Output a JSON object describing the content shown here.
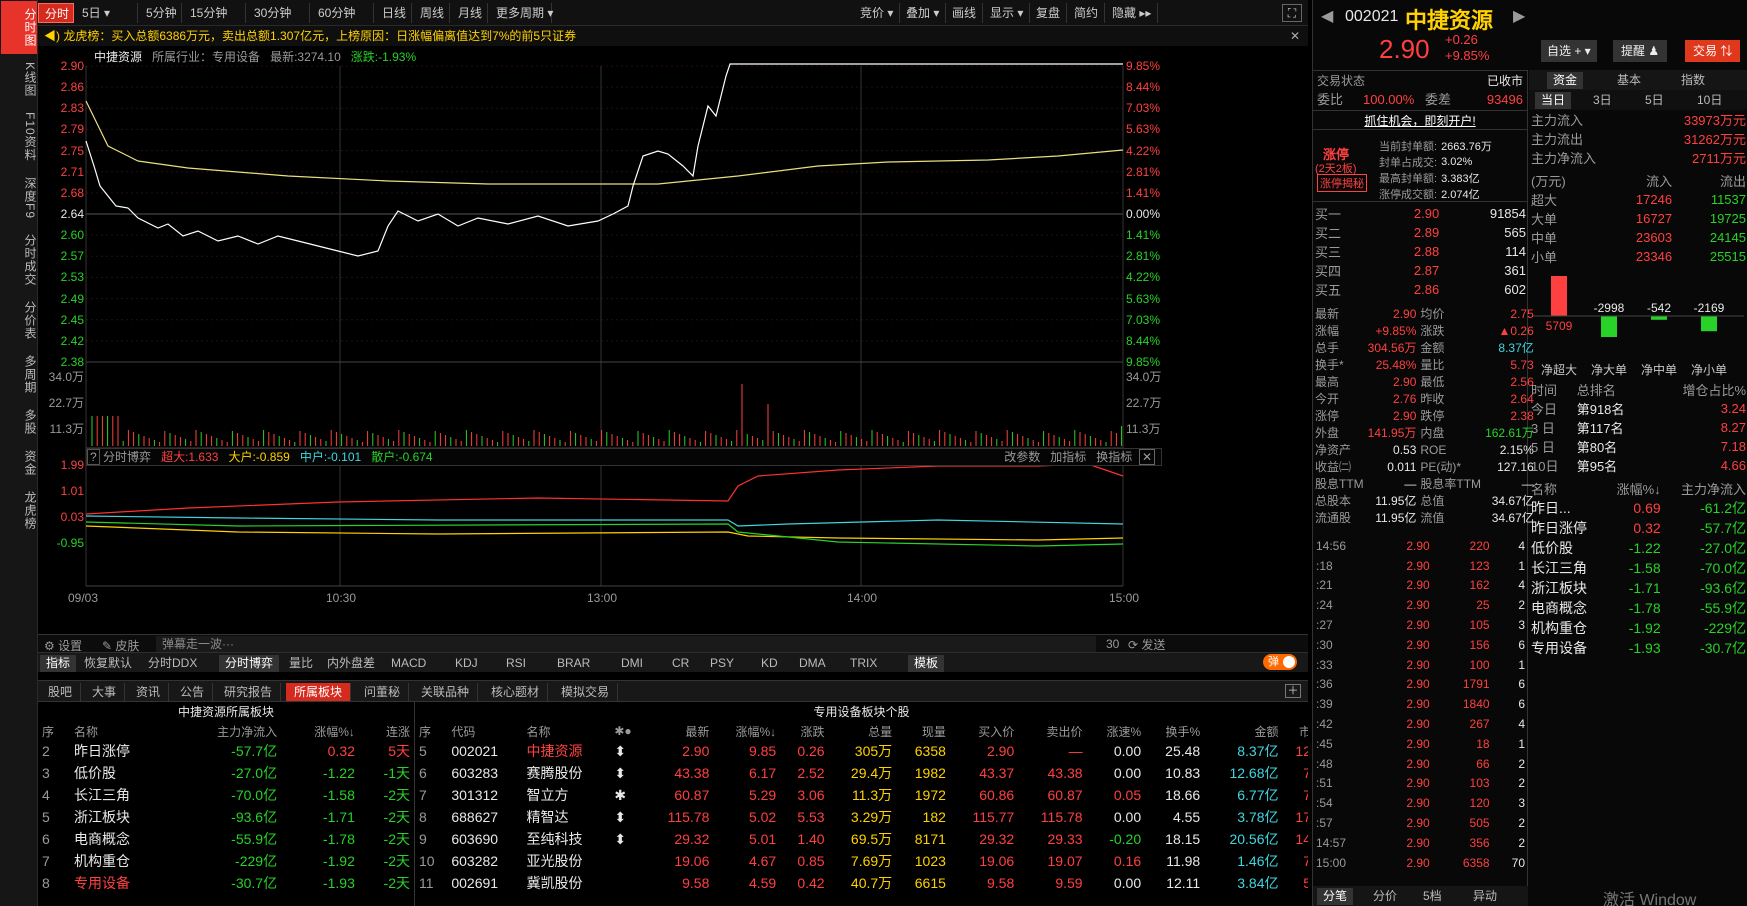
{
  "sidebar": [
    "分时图",
    "K线图",
    "F10资料",
    "深度F9",
    "分时成交",
    "分价表",
    "多周期",
    "多股",
    "资金",
    "龙虎榜"
  ],
  "toolbar": {
    "periods": [
      "分时",
      "5日 ▾",
      "5分钟",
      "15分钟",
      "30分钟",
      "60分钟",
      "日线",
      "周线",
      "月线",
      "更多周期 ▾"
    ],
    "right": [
      "竞价 ▾",
      "叠加 ▾",
      "画线",
      "显示 ▾",
      "复盘",
      "简约",
      "隐藏 ▸▸"
    ]
  },
  "notice": "龙虎榜：买入总额6386万元，卖出总额1.307亿元，上榜原因：日涨幅偏离值达到7%的前5只证券",
  "chart_info": {
    "name": "中捷资源",
    "industry": "所属行业：专用设备",
    "latest": "最新:3274.10",
    "change": "涨跌:-1.93%"
  },
  "price_ticks_left": [
    "2.90",
    "2.86",
    "2.83",
    "2.79",
    "2.75",
    "2.71",
    "2.68",
    "2.64",
    "2.60",
    "2.57",
    "2.53",
    "2.49",
    "2.45",
    "2.42",
    "2.38"
  ],
  "price_ticks_right": [
    "9.85%",
    "8.44%",
    "7.03%",
    "5.63%",
    "4.22%",
    "2.81%",
    "1.41%",
    "0.00%",
    "1.41%",
    "2.81%",
    "4.22%",
    "5.63%",
    "7.03%",
    "8.44%",
    "9.85%"
  ],
  "vol_ticks": [
    "34.0万",
    "22.7万",
    "11.3万"
  ],
  "ind_bar": {
    "name": "分时博弈",
    "super": "超大:1.633",
    "big": "大户:-0.859",
    "mid": "中户:-0.101",
    "small": "散户:-0.674",
    "links": [
      "改参数",
      "加指标",
      "换指标"
    ]
  },
  "ind_ticks": [
    "1.99",
    "1.01",
    "0.03",
    "-0.95"
  ],
  "time_ticks": [
    "09/03",
    "10:30",
    "13:00",
    "14:00",
    "15:00"
  ],
  "ctrl": {
    "settings": "设置",
    "skin": "皮肤",
    "danmu": "弹幕走一波···",
    "count": "30",
    "send": "发送",
    "toggle": "弹"
  },
  "tabs1": [
    "指标",
    "恢复默认",
    "分时DDX",
    "分时博弈",
    "量比",
    "内外盘差",
    "MACD",
    "KDJ",
    "RSI",
    "BRAR",
    "DMI",
    "CR",
    "PSY",
    "KD",
    "DMA",
    "TRIX",
    "模板"
  ],
  "tabs2": [
    "股吧",
    "大事",
    "资讯",
    "公告",
    "研究报告",
    "所属板块",
    "问董秘",
    "关联品种",
    "核心题材",
    "模拟交易"
  ],
  "sector": {
    "title": "中捷资源所属板块",
    "headers": [
      "序",
      "名称",
      "主力净流入",
      "涨幅%↓",
      "连涨"
    ],
    "rows": [
      [
        "2",
        "昨日涨停",
        "-57.7亿",
        "0.32",
        "5天"
      ],
      [
        "3",
        "低价股",
        "-27.0亿",
        "-1.22",
        "-1天"
      ],
      [
        "4",
        "长江三角",
        "-70.0亿",
        "-1.58",
        "-2天"
      ],
      [
        "5",
        "浙江板块",
        "-93.6亿",
        "-1.71",
        "-2天"
      ],
      [
        "6",
        "电商概念",
        "-55.9亿",
        "-1.78",
        "-2天"
      ],
      [
        "7",
        "机构重仓",
        "-229亿",
        "-1.92",
        "-2天"
      ],
      [
        "8",
        "专用设备",
        "-30.7亿",
        "-1.93",
        "-2天"
      ]
    ]
  },
  "stocks": {
    "title": "专用设备板块个股",
    "headers": [
      "序",
      "代码",
      "名称",
      "✱●",
      "最新",
      "涨幅%↓",
      "涨跌",
      "总量",
      "现量",
      "买入价",
      "卖出价",
      "涨速%",
      "换手%",
      "金额",
      "市"
    ],
    "rows": [
      [
        "5",
        "002021",
        "中捷资源",
        "⬍",
        "2.90",
        "9.85",
        "0.26",
        "305万",
        "6358",
        "2.90",
        "—",
        "0.00",
        "25.48",
        "8.37亿",
        "12"
      ],
      [
        "6",
        "603283",
        "赛腾股份",
        "⬍",
        "43.38",
        "6.17",
        "2.52",
        "29.4万",
        "1982",
        "43.37",
        "43.38",
        "0.00",
        "10.83",
        "12.68亿",
        "7"
      ],
      [
        "7",
        "301312",
        "智立方",
        "✱",
        "60.87",
        "5.29",
        "3.06",
        "11.3万",
        "1972",
        "60.86",
        "60.87",
        "0.05",
        "18.66",
        "6.77亿",
        "7"
      ],
      [
        "8",
        "688627",
        "精智达",
        "⬍",
        "115.78",
        "5.02",
        "5.53",
        "3.29万",
        "182",
        "115.77",
        "115.78",
        "0.00",
        "4.55",
        "3.78亿",
        "17"
      ],
      [
        "9",
        "603690",
        "至纯科技",
        "⬍",
        "29.32",
        "5.01",
        "1.40",
        "69.5万",
        "8171",
        "29.32",
        "29.33",
        "-0.20",
        "18.15",
        "20.56亿",
        "14"
      ],
      [
        "10",
        "603282",
        "亚光股份",
        "",
        "19.06",
        "4.67",
        "0.85",
        "7.69万",
        "1023",
        "19.06",
        "19.07",
        "0.16",
        "11.98",
        "1.46亿",
        "7"
      ],
      [
        "11",
        "002691",
        "冀凯股份",
        "",
        "9.58",
        "4.59",
        "0.42",
        "40.7万",
        "6615",
        "9.58",
        "9.59",
        "0.00",
        "12.11",
        "3.84亿",
        "5"
      ]
    ]
  },
  "quote": {
    "code": "002021",
    "name": "中捷资源",
    "price": "2.90",
    "chg": "+0.26",
    "pct": "+9.85%",
    "btn_fav": "自选 + ▾",
    "btn_alert": "提醒 ♟",
    "btn_trade": "交易 ⇅"
  },
  "status": {
    "label": "交易状态",
    "value": "已收市",
    "wb": "委比",
    "wb_v": "100.00%",
    "wc": "委差",
    "wc_v": "93496",
    "promo": "抓住机会，即刻开户!"
  },
  "limit": {
    "title": "涨停",
    "sub": "(2天2板)",
    "tag": "涨停揭秘",
    "rows": [
      [
        "当前封单额:",
        "2663.76万"
      ],
      [
        "封单占成交:",
        "3.02%"
      ],
      [
        "最高封单额:",
        "3.383亿"
      ],
      [
        "涨停成交额:",
        "2.074亿"
      ]
    ]
  },
  "book": [
    [
      "买一",
      "2.90",
      "91854"
    ],
    [
      "买二",
      "2.89",
      "565"
    ],
    [
      "买三",
      "2.88",
      "114"
    ],
    [
      "买四",
      "2.87",
      "361"
    ],
    [
      "买五",
      "2.86",
      "602"
    ]
  ],
  "stats": [
    [
      "最新",
      "2.90",
      "均价",
      "2.75"
    ],
    [
      "涨幅",
      "+9.85%",
      "涨跌",
      "▲0.26"
    ],
    [
      "总手",
      "304.56万",
      "金额",
      "8.37亿"
    ],
    [
      "换手*",
      "25.48%",
      "量比",
      "5.73"
    ],
    [
      "最高",
      "2.90",
      "最低",
      "2.56"
    ],
    [
      "今开",
      "2.76",
      "昨收",
      "2.64"
    ],
    [
      "涨停",
      "2.90",
      "跌停",
      "2.38"
    ],
    [
      "外盘",
      "141.95万",
      "内盘",
      "162.61万"
    ],
    [
      "净资产",
      "0.53",
      "ROE",
      "2.15%"
    ],
    [
      "收益㈡",
      "0.011",
      "PE(动)*",
      "127.16"
    ],
    [
      "股息TTM",
      "—",
      "股息率TTM",
      "—"
    ],
    [
      "总股本",
      "11.95亿",
      "总值",
      "34.67亿"
    ],
    [
      "流通股",
      "11.95亿",
      "流值",
      "34.67亿"
    ]
  ],
  "ticks": [
    [
      "14:56",
      "2.90",
      "220",
      "4"
    ],
    [
      ":18",
      "2.90",
      "123",
      "1"
    ],
    [
      ":21",
      "2.90",
      "162",
      "4"
    ],
    [
      ":24",
      "2.90",
      "25",
      "2"
    ],
    [
      ":27",
      "2.90",
      "105",
      "3"
    ],
    [
      ":30",
      "2.90",
      "156",
      "6"
    ],
    [
      ":33",
      "2.90",
      "100",
      "1"
    ],
    [
      ":36",
      "2.90",
      "1791",
      "6"
    ],
    [
      ":39",
      "2.90",
      "1840",
      "6"
    ],
    [
      ":42",
      "2.90",
      "267",
      "4"
    ],
    [
      ":45",
      "2.90",
      "18",
      "1"
    ],
    [
      ":48",
      "2.90",
      "66",
      "2"
    ],
    [
      ":51",
      "2.90",
      "103",
      "2"
    ],
    [
      ":54",
      "2.90",
      "120",
      "3"
    ],
    [
      ":57",
      "2.90",
      "505",
      "2"
    ],
    [
      "14:57",
      "2.90",
      "356",
      "2"
    ],
    [
      "15:00",
      "2.90",
      "6358",
      "70"
    ]
  ],
  "tick_tabs": [
    "分笔",
    "分价",
    "5档",
    "异动"
  ],
  "fund": {
    "tabs": [
      "资金",
      "基本",
      "指数"
    ],
    "periods": [
      "当日",
      "3日",
      "5日",
      "10日"
    ],
    "flows": [
      [
        "主力流入",
        "33973万元"
      ],
      [
        "主力流出",
        "31262万元"
      ],
      [
        "主力净流入",
        "2711万元"
      ]
    ],
    "hdr": [
      "(万元)",
      "流入",
      "流出"
    ],
    "rows": [
      [
        "超大",
        "17246",
        "11537"
      ],
      [
        "大单",
        "16727",
        "19725"
      ],
      [
        "中单",
        "23603",
        "24145"
      ],
      [
        "小单",
        "23346",
        "25515"
      ]
    ],
    "net_vals": [
      "5709",
      "-2998",
      "-542",
      "-2169"
    ],
    "net_labels": [
      "净超大",
      "净大单",
      "净中单",
      "净小单"
    ]
  },
  "rank": {
    "hdr": [
      "时间",
      "总排名",
      "增仓占比%"
    ],
    "rows": [
      [
        "今日",
        "第918名",
        "3.24"
      ],
      [
        "3 日",
        "第117名",
        "8.27"
      ],
      [
        "5 日",
        "第80名",
        "7.18"
      ],
      [
        "10日",
        "第95名",
        "4.66"
      ]
    ]
  },
  "sector_r": {
    "hdr": [
      "名称",
      "涨幅%↓",
      "主力净流入"
    ],
    "rows": [
      [
        "昨日...",
        "0.69",
        "-61.2亿"
      ],
      [
        "昨日涨停",
        "0.32",
        "-57.7亿"
      ],
      [
        "低价股",
        "-1.22",
        "-27.0亿"
      ],
      [
        "长江三角",
        "-1.58",
        "-70.0亿"
      ],
      [
        "浙江板块",
        "-1.71",
        "-93.6亿"
      ],
      [
        "电商概念",
        "-1.78",
        "-55.9亿"
      ],
      [
        "机构重仓",
        "-1.92",
        "-229亿"
      ],
      [
        "专用设备",
        "-1.93",
        "-30.7亿"
      ]
    ]
  },
  "watermark": "激活 Window"
}
